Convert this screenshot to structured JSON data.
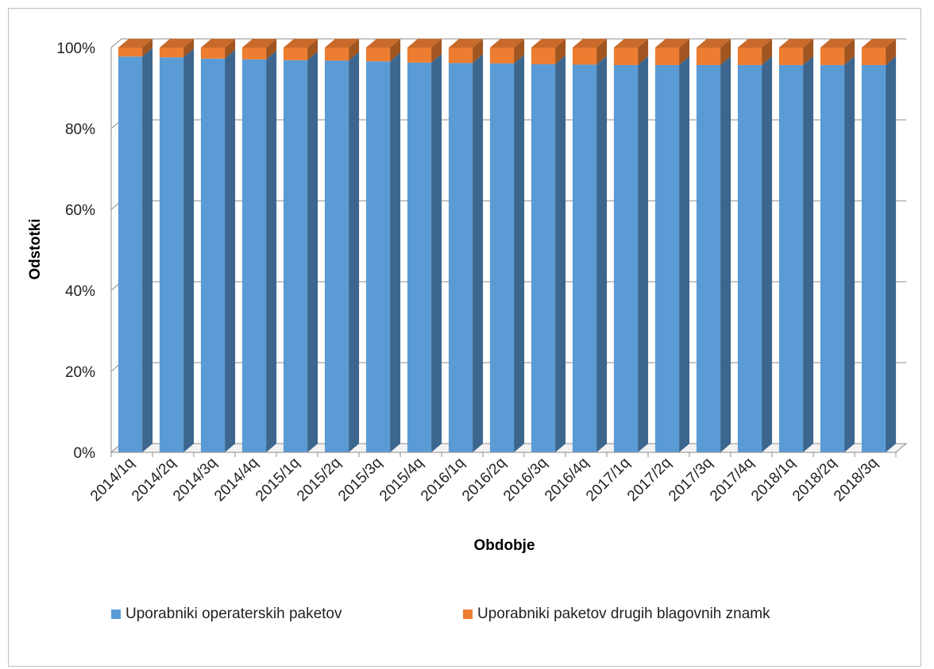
{
  "chart_data": {
    "type": "bar",
    "stacked": true,
    "percent": true,
    "three_d": true,
    "xlabel": "Obdobje",
    "ylabel": "Odstotki",
    "ylim": [
      0,
      100
    ],
    "yticks": [
      "0%",
      "20%",
      "40%",
      "60%",
      "80%",
      "100%"
    ],
    "categories": [
      "2014/1q",
      "2014/2q",
      "2014/3q",
      "2014/4q",
      "2015/1q",
      "2015/2q",
      "2015/3q",
      "2015/4q",
      "2016/1q",
      "2016/2q",
      "2016/3q",
      "2016/4q",
      "2017/1q",
      "2017/2q",
      "2017/3q",
      "2017/4q",
      "2018/1q",
      "2018/2q",
      "2018/3q"
    ],
    "series": [
      {
        "name": "Uporabniki operaterskih paketov",
        "color": "#5b9bd5",
        "values": [
          97.8,
          97.6,
          97.3,
          97.1,
          96.9,
          96.8,
          96.6,
          96.3,
          96.2,
          96.1,
          95.9,
          95.8,
          95.7,
          95.7,
          95.7,
          95.7,
          95.7,
          95.7,
          95.7
        ]
      },
      {
        "name": "Uporabniki paketov drugih blagovnih znamk",
        "color": "#ed7d31",
        "values": [
          2.2,
          2.4,
          2.7,
          2.9,
          3.1,
          3.2,
          3.4,
          3.7,
          3.8,
          3.9,
          4.1,
          4.2,
          4.3,
          4.3,
          4.3,
          4.3,
          4.3,
          4.3,
          4.3
        ]
      }
    ],
    "grid": true,
    "legend_position": "bottom"
  }
}
